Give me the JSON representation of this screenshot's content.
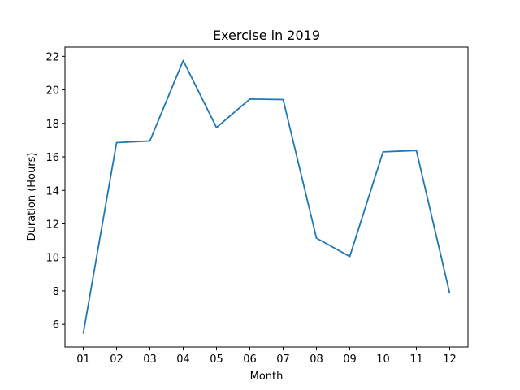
{
  "chart_data": {
    "type": "line",
    "title": "Exercise in 2019",
    "xlabel": "Month",
    "ylabel": "Duration (Hours)",
    "categories": [
      "01",
      "02",
      "03",
      "04",
      "05",
      "06",
      "07",
      "08",
      "09",
      "10",
      "11",
      "12"
    ],
    "series": [
      {
        "values": [
          5.45,
          16.85,
          16.95,
          21.75,
          17.75,
          19.45,
          19.42,
          11.15,
          10.05,
          16.3,
          16.38,
          7.85
        ],
        "color": "#1f77b4"
      }
    ],
    "yticks": [
      6,
      8,
      10,
      12,
      14,
      16,
      18,
      20,
      22
    ],
    "ylim": [
      4.65,
      22.55
    ],
    "grid": false,
    "legend": "none"
  }
}
